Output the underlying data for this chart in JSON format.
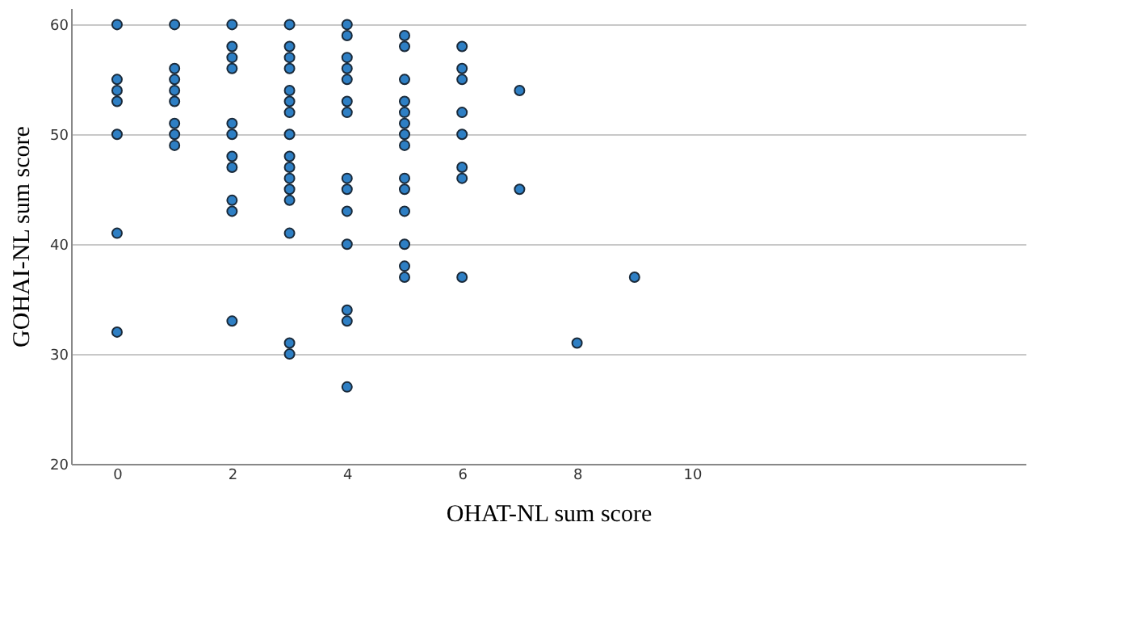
{
  "chart_data": {
    "type": "scatter",
    "xlabel": "OHAT-NL sum score",
    "ylabel": "GOHAI-NL  sum score",
    "x": [
      0,
      0,
      0,
      0,
      0,
      0,
      0,
      1,
      1,
      1,
      1,
      1,
      1,
      1,
      1,
      2,
      2,
      2,
      2,
      2,
      2,
      2,
      2,
      2,
      2,
      2,
      3,
      3,
      3,
      3,
      3,
      3,
      3,
      3,
      3,
      3,
      3,
      3,
      3,
      3,
      3,
      3,
      4,
      4,
      4,
      4,
      4,
      4,
      4,
      4,
      4,
      4,
      4,
      4,
      4,
      4,
      5,
      5,
      5,
      5,
      5,
      5,
      5,
      5,
      5,
      5,
      5,
      5,
      5,
      5,
      6,
      6,
      6,
      6,
      6,
      6,
      6,
      6,
      7,
      7,
      8,
      9
    ],
    "series": [
      {
        "color": "#2e7fc4",
        "values": [
          60,
          55,
          54,
          53,
          50,
          41,
          32,
          60,
          56,
          55,
          54,
          53,
          51,
          50,
          49,
          60,
          58,
          57,
          56,
          51,
          50,
          48,
          47,
          44,
          43,
          33,
          60,
          58,
          57,
          56,
          54,
          53,
          52,
          50,
          48,
          47,
          46,
          45,
          44,
          41,
          31,
          30,
          60,
          59,
          57,
          56,
          55,
          53,
          52,
          46,
          45,
          43,
          40,
          34,
          33,
          27,
          59,
          58,
          55,
          53,
          52,
          51,
          50,
          49,
          46,
          45,
          43,
          40,
          38,
          37,
          58,
          56,
          55,
          52,
          50,
          47,
          46,
          37,
          54,
          45,
          31,
          37
        ]
      }
    ],
    "xlim": [
      -0.8,
      15.8
    ],
    "xticks": [
      0,
      2,
      4,
      6,
      8,
      10
    ],
    "ylim": [
      20,
      61.5
    ],
    "yticks": [
      20,
      30,
      40,
      50,
      60
    ],
    "grid": "y",
    "marker": "circle",
    "legend": false
  }
}
